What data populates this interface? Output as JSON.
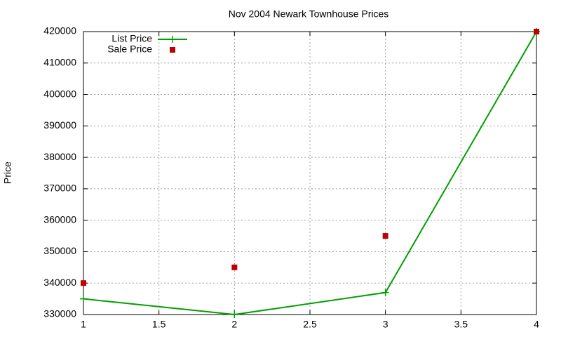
{
  "chart_data": {
    "type": "line",
    "title": "Nov 2004 Newark Townhouse Prices",
    "y_label": "Price",
    "x": [
      1,
      2,
      3,
      4
    ],
    "series": [
      {
        "name": "List Price",
        "color": "#00a000",
        "mode": "lines+points",
        "values": [
          335000,
          330000,
          337000,
          420000
        ]
      },
      {
        "name": "Sale Price",
        "color": "#c00000",
        "mode": "points",
        "values": [
          340000,
          345000,
          355000,
          420000
        ]
      }
    ],
    "xlim": [
      1,
      4
    ],
    "xticks": [
      1,
      1.5,
      2,
      2.5,
      3,
      3.5,
      4
    ],
    "ylim": [
      330000,
      420000
    ],
    "yticks": [
      330000,
      340000,
      350000,
      360000,
      370000,
      380000,
      390000,
      400000,
      410000,
      420000
    ],
    "grid": true,
    "legend": "top-left"
  }
}
